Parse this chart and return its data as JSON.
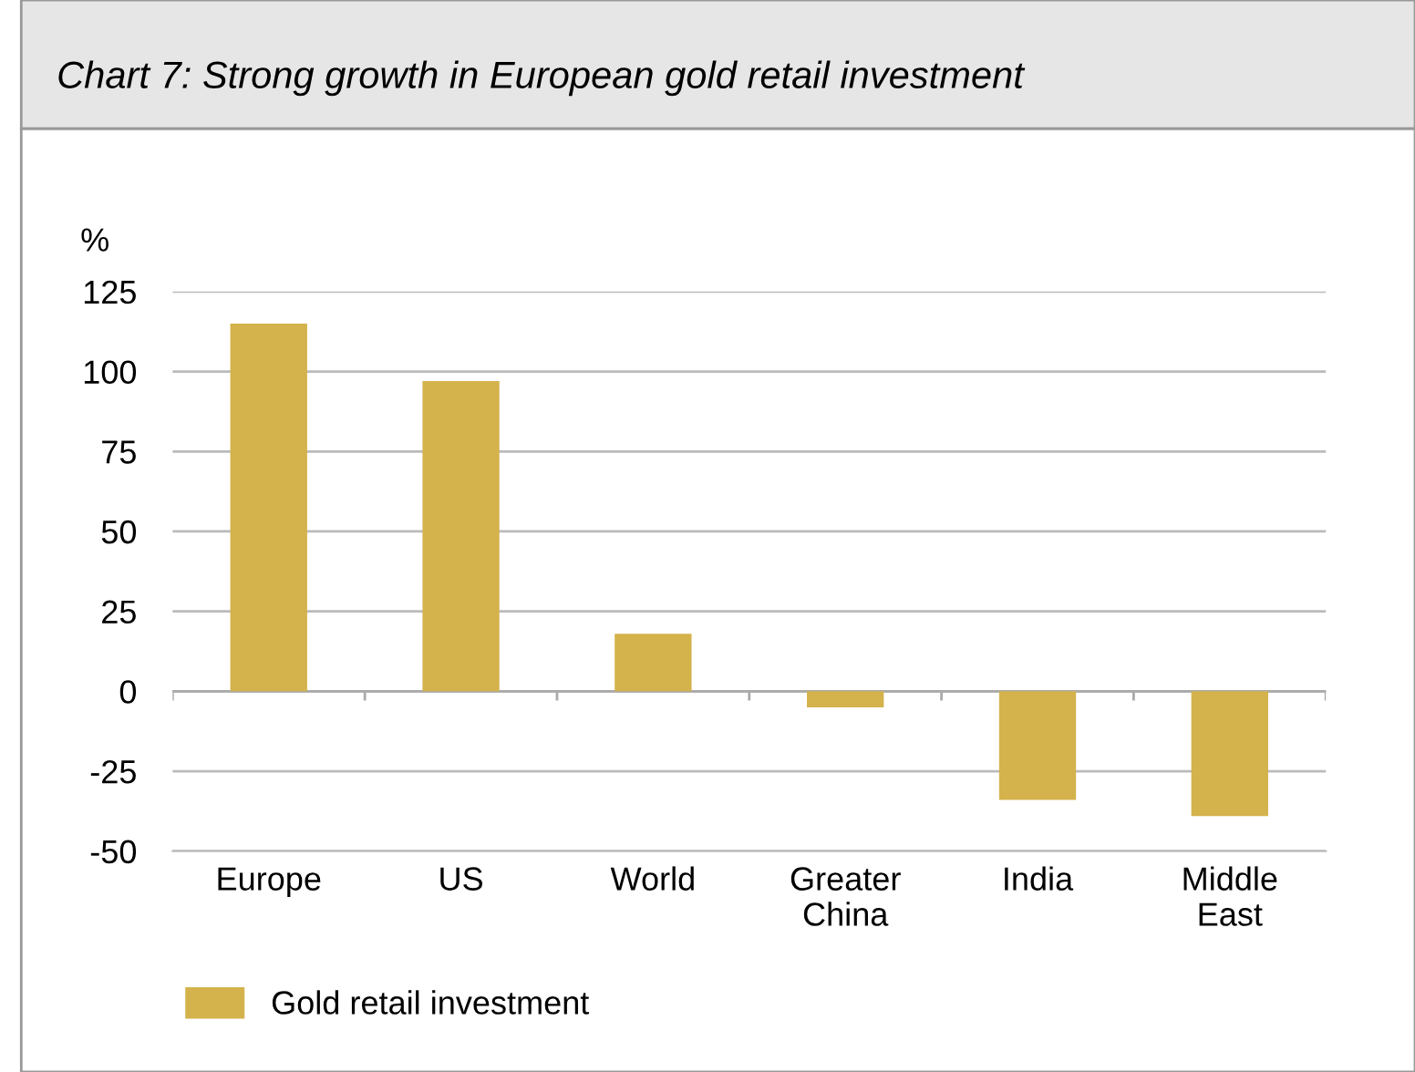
{
  "chart_data": {
    "type": "bar",
    "title": "Chart 7: Strong growth in European gold retail investment",
    "ylabel": "%",
    "categories": [
      "Europe",
      "US",
      "World",
      "Greater\nChina",
      "India",
      "Middle\nEast"
    ],
    "series": [
      {
        "name": "Gold retail investment",
        "color": "#d4b24c",
        "values": [
          115,
          97,
          18,
          -5,
          -34,
          -39
        ]
      }
    ],
    "ylim": [
      -50,
      125
    ],
    "yticks": [
      -50,
      -25,
      0,
      25,
      50,
      75,
      100,
      125
    ],
    "grid": "y",
    "legend": "bottom left"
  }
}
